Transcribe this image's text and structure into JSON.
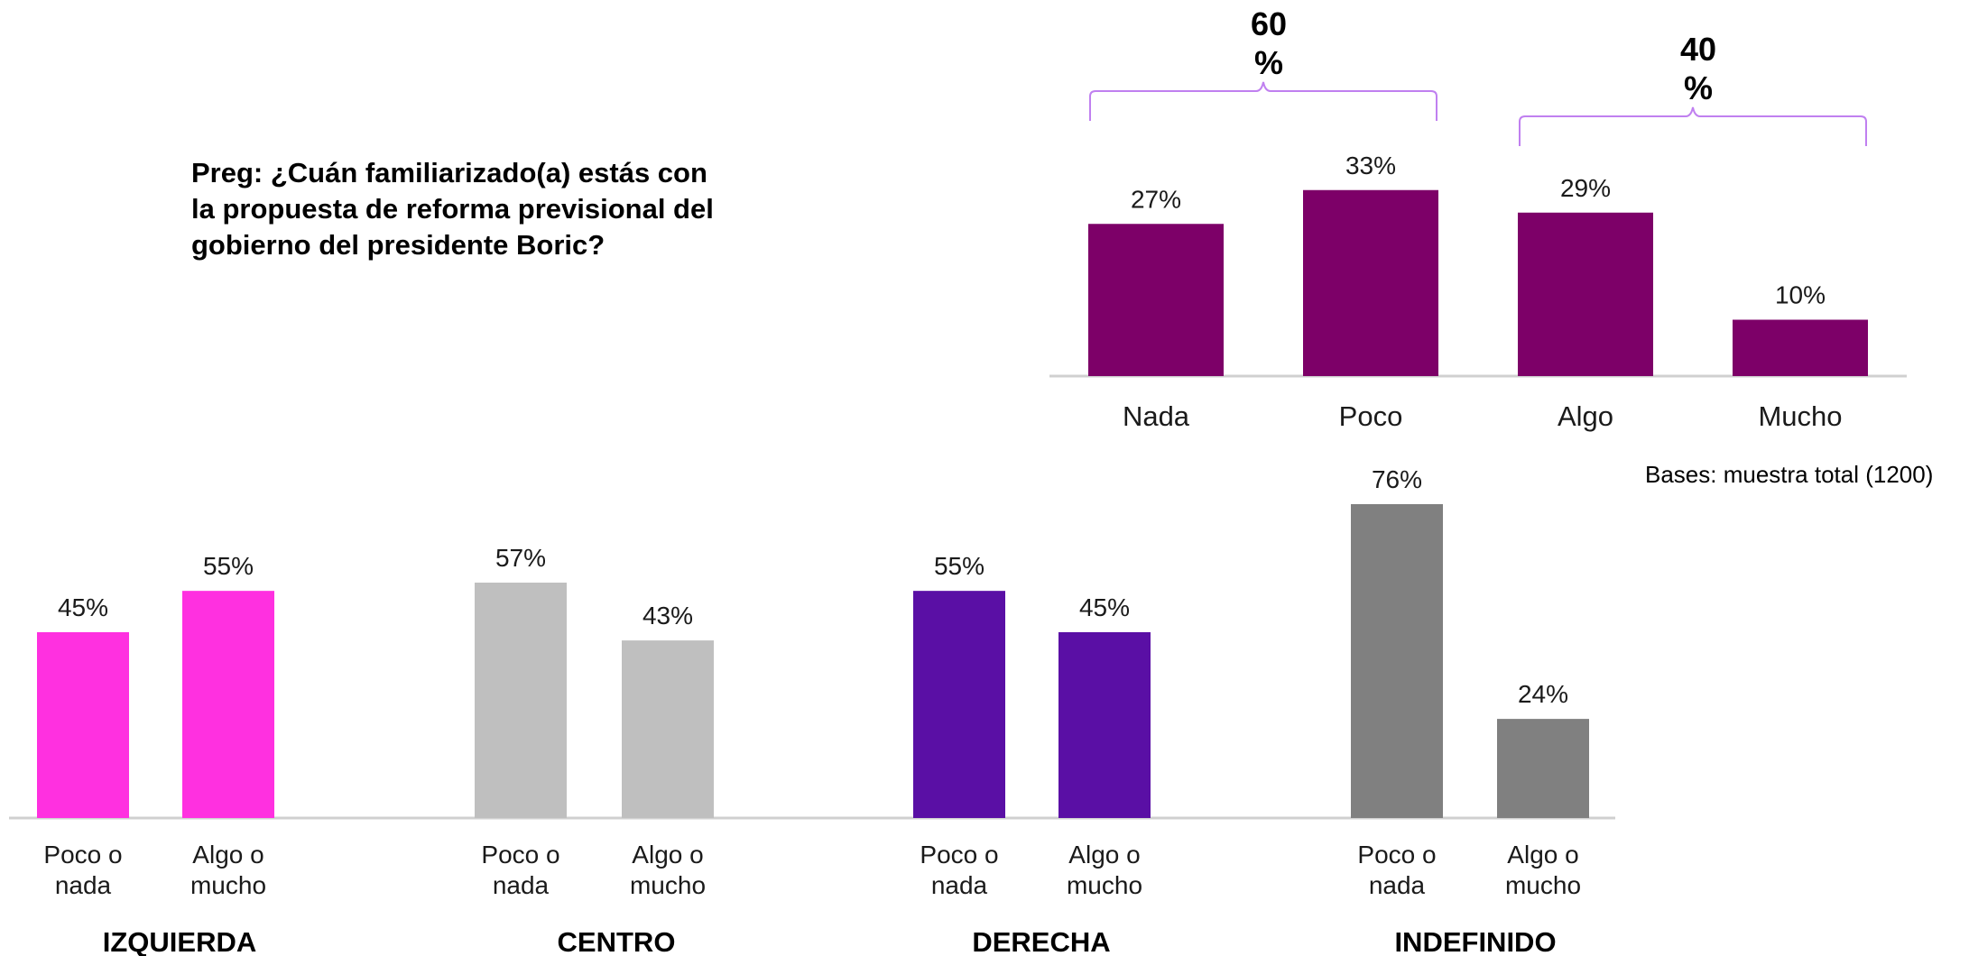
{
  "question": "Preg: ¿Cuán familiarizado(a) estás con la propuesta de reforma previsional del gobierno del presidente Boric?",
  "base_note": "Bases: muestra total (1200)",
  "chart_data": [
    {
      "type": "bar",
      "categories": [
        "Nada",
        "Poco",
        "Algo",
        "Mucho"
      ],
      "values": [
        27,
        33,
        29,
        10
      ],
      "value_labels": [
        "27%",
        "33%",
        "29%",
        "10%"
      ],
      "colors": [
        "#7d0068",
        "#7d0068",
        "#7d0068",
        "#7d0068"
      ],
      "ylim": [
        0,
        36
      ],
      "grid": false,
      "brackets": [
        {
          "label_value": "60",
          "label_unit": "%",
          "span": [
            "Nada",
            "Poco"
          ],
          "color": "#c080f0"
        },
        {
          "label_value": "40",
          "label_unit": "%",
          "span": [
            "Algo",
            "Mucho"
          ],
          "color": "#c080f0"
        }
      ]
    },
    {
      "type": "bar",
      "groups": [
        {
          "name": "IZQUIERDA",
          "categories": [
            "Poco o nada",
            "Algo o mucho"
          ],
          "category_lines": [
            [
              "Poco o",
              "nada"
            ],
            [
              "Algo o",
              "mucho"
            ]
          ],
          "values": [
            45,
            55
          ],
          "value_labels": [
            "45%",
            "55%"
          ],
          "color": "#ff30e0"
        },
        {
          "name": "CENTRO",
          "categories": [
            "Poco o nada",
            "Algo o mucho"
          ],
          "category_lines": [
            [
              "Poco o",
              "nada"
            ],
            [
              "Algo o",
              "mucho"
            ]
          ],
          "values": [
            57,
            43
          ],
          "value_labels": [
            "57%",
            "43%"
          ],
          "color": "#bfbfbf"
        },
        {
          "name": "DERECHA",
          "categories": [
            "Poco o nada",
            "Algo o mucho"
          ],
          "category_lines": [
            [
              "Poco o",
              "nada"
            ],
            [
              "Algo o",
              "mucho"
            ]
          ],
          "values": [
            55,
            45
          ],
          "value_labels": [
            "55%",
            "45%"
          ],
          "color": "#5a0fa5"
        },
        {
          "name": "INDEFINIDO",
          "categories": [
            "Poco o nada",
            "Algo o mucho"
          ],
          "category_lines": [
            [
              "Poco o",
              "nada"
            ],
            [
              "Algo o",
              "mucho"
            ]
          ],
          "values": [
            76,
            24
          ],
          "value_labels": [
            "76%",
            "24%"
          ],
          "color": "#808080"
        }
      ],
      "ylim": [
        0,
        76
      ],
      "grid": false
    }
  ]
}
